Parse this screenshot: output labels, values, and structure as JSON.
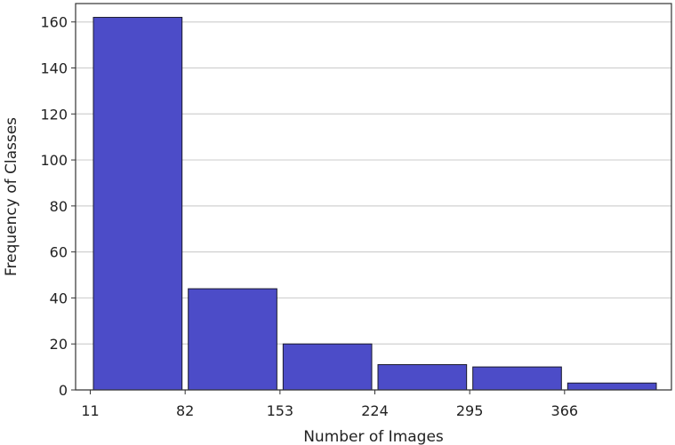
{
  "chart_data": {
    "type": "bar",
    "title": "",
    "xlabel": "Number of Images",
    "ylabel": "Frequency of Classes",
    "bins": [
      {
        "start": 11,
        "end": 82,
        "value": 162
      },
      {
        "start": 82,
        "end": 153,
        "value": 44
      },
      {
        "start": 153,
        "end": 224,
        "value": 20
      },
      {
        "start": 224,
        "end": 295,
        "value": 11
      },
      {
        "start": 295,
        "end": 366,
        "value": 10
      },
      {
        "start": 366,
        "end": 437,
        "value": 3
      }
    ],
    "xticks": [
      "11",
      "82",
      "153",
      "224",
      "295",
      "366"
    ],
    "yticks": [
      "0",
      "20",
      "40",
      "60",
      "80",
      "100",
      "120",
      "140",
      "160"
    ],
    "ylim": [
      0,
      168
    ],
    "xlim": [
      0,
      446
    ],
    "grid": "horizontal",
    "bar_color": "#4c4cc8",
    "bar_edge_color": "#1a1a2e"
  }
}
